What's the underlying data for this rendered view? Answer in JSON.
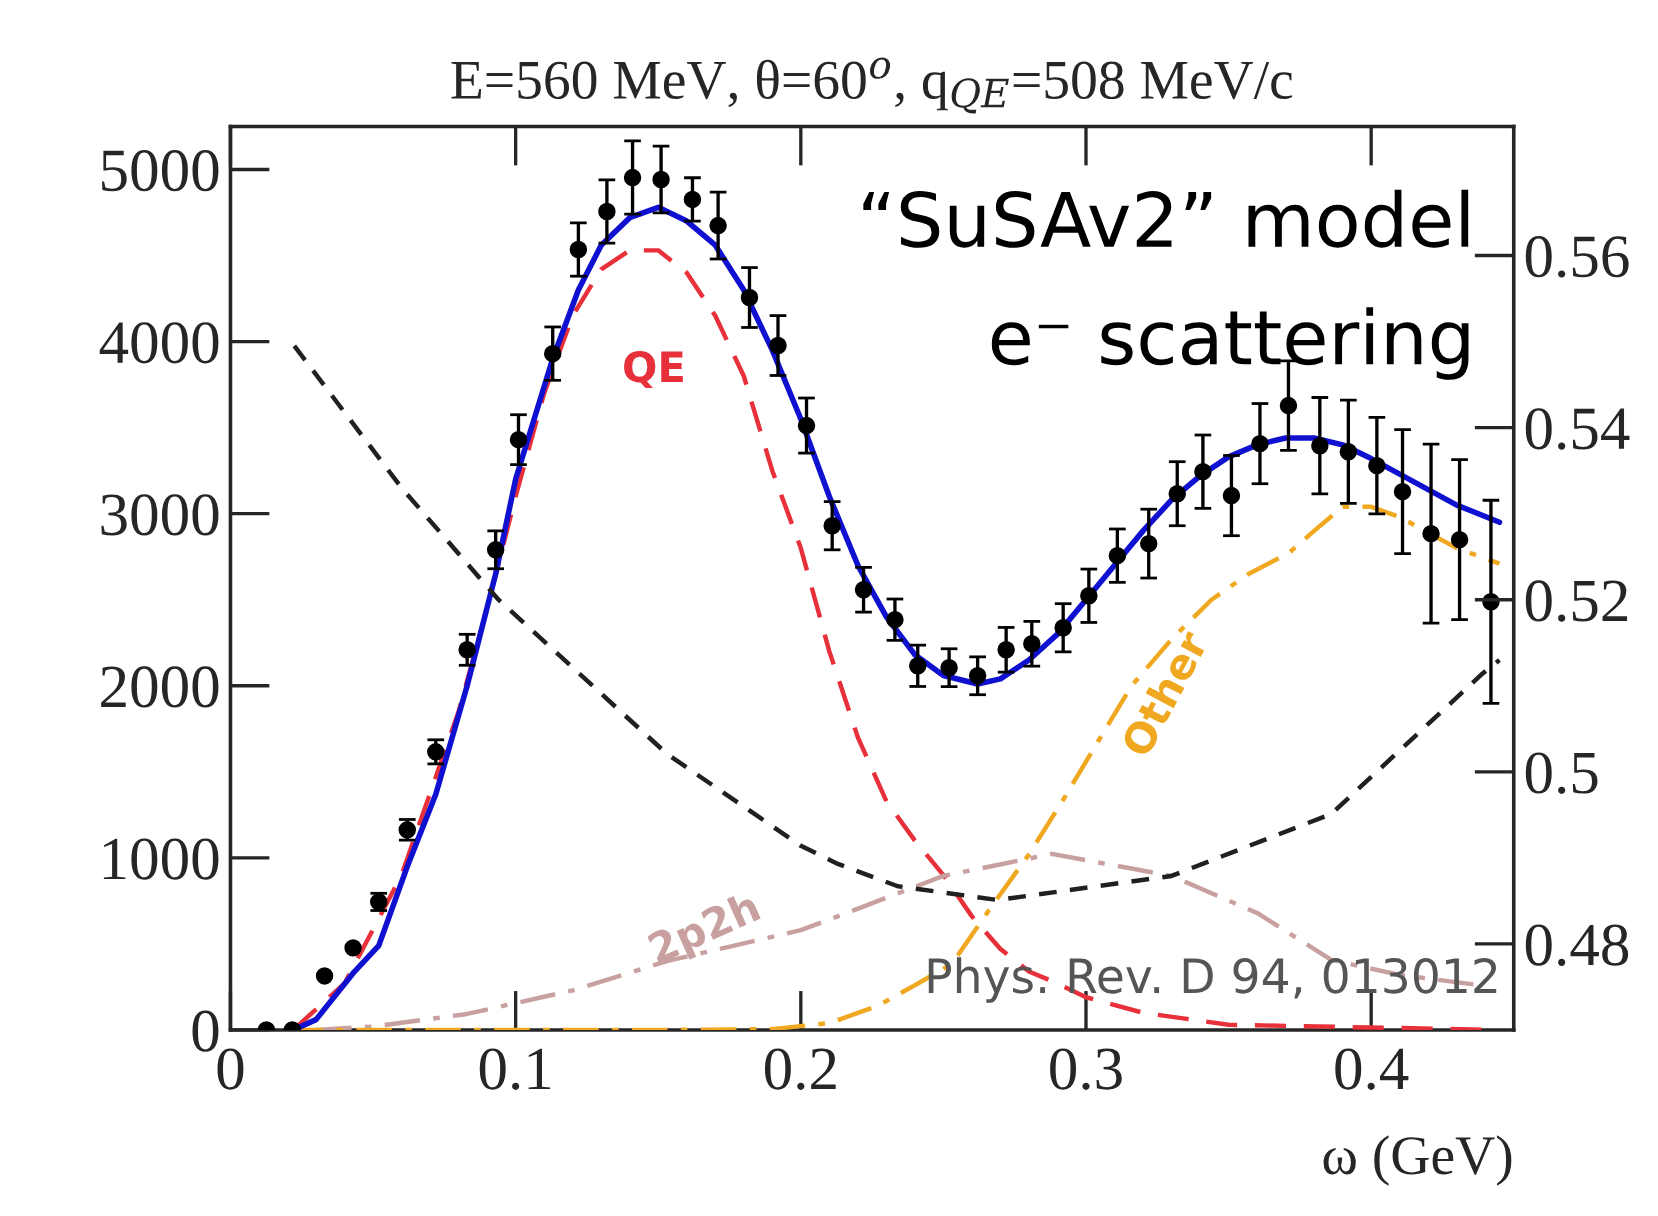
{
  "chart_data": {
    "type": "line",
    "title": "E=560 MeV, θ=60$^{o}$, q$_{QE}$=508 MeV/c",
    "xlabel": "ω (GeV)",
    "xlim": [
      0,
      0.45
    ],
    "ylim": [
      0,
      5250
    ],
    "y2lim": [
      0.47,
      0.575
    ],
    "xticks": [
      0,
      0.1,
      0.2,
      0.3,
      0.4
    ],
    "yticks": [
      0,
      1000,
      2000,
      3000,
      4000,
      5000
    ],
    "y2ticks": [
      0.48,
      0.5,
      0.52,
      0.54,
      0.56
    ],
    "grid": false,
    "legend": false,
    "series": [
      {
        "type": "line",
        "color": "#e8303a",
        "line_style": "dashed",
        "x": [
          0.022,
          0.04,
          0.06,
          0.08,
          0.09,
          0.1,
          0.11,
          0.12,
          0.13,
          0.14,
          0.15,
          0.16,
          0.17,
          0.18,
          0.19,
          0.2,
          0.21,
          0.22,
          0.23,
          0.24,
          0.25,
          0.26,
          0.27,
          0.28,
          0.29,
          0.3,
          0.32,
          0.35,
          0.445
        ],
        "values": [
          0,
          270,
          900,
          1850,
          2450,
          3100,
          3700,
          4150,
          4420,
          4530,
          4530,
          4400,
          4150,
          3800,
          3250,
          2800,
          2200,
          1700,
          1330,
          1100,
          900,
          660,
          470,
          340,
          270,
          190,
          100,
          30,
          0
        ]
      },
      {
        "type": "line",
        "color": "#c8a0a0",
        "line_style": "dashdot",
        "x": [
          0.03,
          0.05,
          0.083,
          0.12,
          0.153,
          0.2,
          0.213,
          0.25,
          0.288,
          0.33,
          0.36,
          0.386,
          0.41,
          0.44
        ],
        "values": [
          0,
          20,
          93,
          230,
          400,
          580,
          660,
          895,
          1023,
          895,
          680,
          407,
          320,
          256
        ]
      },
      {
        "type": "line",
        "color": "#f0a820",
        "line_style": "dashdot",
        "x": [
          0.02,
          0.1,
          0.15,
          0.19,
          0.21,
          0.227,
          0.24,
          0.253,
          0.267,
          0.28,
          0.292,
          0.304,
          0.316,
          0.33,
          0.344,
          0.357,
          0.371,
          0.38,
          0.39,
          0.4,
          0.41,
          0.42,
          0.43,
          0.445
        ],
        "values": [
          0,
          0,
          0,
          5,
          40,
          140,
          260,
          384,
          720,
          1020,
          1337,
          1670,
          2000,
          2270,
          2500,
          2650,
          2770,
          2900,
          3040,
          3040,
          2980,
          2890,
          2800,
          2710
        ]
      },
      {
        "type": "line",
        "color": "#202020",
        "line_style": "dashed",
        "axis": "y2",
        "x": [
          0.0224,
          0.06,
          0.094,
          0.153,
          0.2,
          0.213,
          0.234,
          0.269,
          0.33,
          0.386,
          0.439,
          0.445
        ],
        "values": [
          0.5495,
          0.533,
          0.52,
          0.5021,
          0.4914,
          0.4893,
          0.4867,
          0.4851,
          0.4879,
          0.4951,
          0.5114,
          0.513
        ]
      },
      {
        "type": "line",
        "color": "#1010d0",
        "line_style": "solid",
        "x": [
          0.022,
          0.03,
          0.043,
          0.052,
          0.062,
          0.072,
          0.083,
          0.093,
          0.1,
          0.113,
          0.122,
          0.13,
          0.14,
          0.15,
          0.16,
          0.17,
          0.18,
          0.19,
          0.2,
          0.21,
          0.22,
          0.23,
          0.24,
          0.25,
          0.262,
          0.27,
          0.28,
          0.29,
          0.3,
          0.31,
          0.32,
          0.33,
          0.34,
          0.35,
          0.36,
          0.37,
          0.38,
          0.39,
          0.4,
          0.41,
          0.42,
          0.43,
          0.445
        ],
        "values": [
          0,
          60,
          330,
          490,
          950,
          1370,
          2000,
          2650,
          3200,
          3900,
          4300,
          4560,
          4720,
          4780,
          4700,
          4560,
          4300,
          3950,
          3550,
          3100,
          2700,
          2400,
          2180,
          2060,
          2010,
          2040,
          2150,
          2300,
          2500,
          2700,
          2900,
          3080,
          3220,
          3330,
          3400,
          3440,
          3440,
          3400,
          3320,
          3230,
          3140,
          3050,
          2950
        ]
      },
      {
        "type": "scatter",
        "color": "#000000",
        "marker": "circle",
        "x": [
          0.0126,
          0.0217,
          0.033,
          0.043,
          0.052,
          0.062,
          0.072,
          0.083,
          0.093,
          0.101,
          0.113,
          0.122,
          0.132,
          0.141,
          0.151,
          0.162,
          0.171,
          0.182,
          0.192,
          0.202,
          0.211,
          0.222,
          0.233,
          0.241,
          0.252,
          0.262,
          0.272,
          0.281,
          0.292,
          0.301,
          0.311,
          0.322,
          0.332,
          0.341,
          0.351,
          0.361,
          0.371,
          0.382,
          0.392,
          0.402,
          0.411,
          0.421,
          0.431,
          0.442
        ],
        "values": [
          0,
          0,
          314,
          477,
          744,
          1163,
          1616,
          2209,
          2790,
          3430,
          3930,
          4535,
          4756,
          4953,
          4942,
          4826,
          4674,
          4256,
          3977,
          3512,
          2930,
          2558,
          2384,
          2116,
          2105,
          2058,
          2209,
          2244,
          2337,
          2523,
          2756,
          2826,
          3116,
          3244,
          3105,
          3407,
          3628,
          3395,
          3360,
          3279,
          3128,
          2884,
          2849,
          2488
        ],
        "errors": [
          null,
          null,
          null,
          null,
          50,
          60,
          70,
          90,
          110,
          145,
          155,
          155,
          184,
          213,
          194,
          126,
          194,
          174,
          174,
          160,
          140,
          130,
          120,
          120,
          110,
          110,
          130,
          130,
          140,
          155,
          155,
          200,
          186,
          213,
          233,
          233,
          260,
          280,
          300,
          280,
          360,
          520,
          465,
          590
        ]
      }
    ],
    "annotations": [
      "QE",
      "2p2h",
      "Other",
      "“SuSAv2” model",
      "e⁻ scattering",
      "Phys. Rev. D 94, 013012"
    ]
  }
}
